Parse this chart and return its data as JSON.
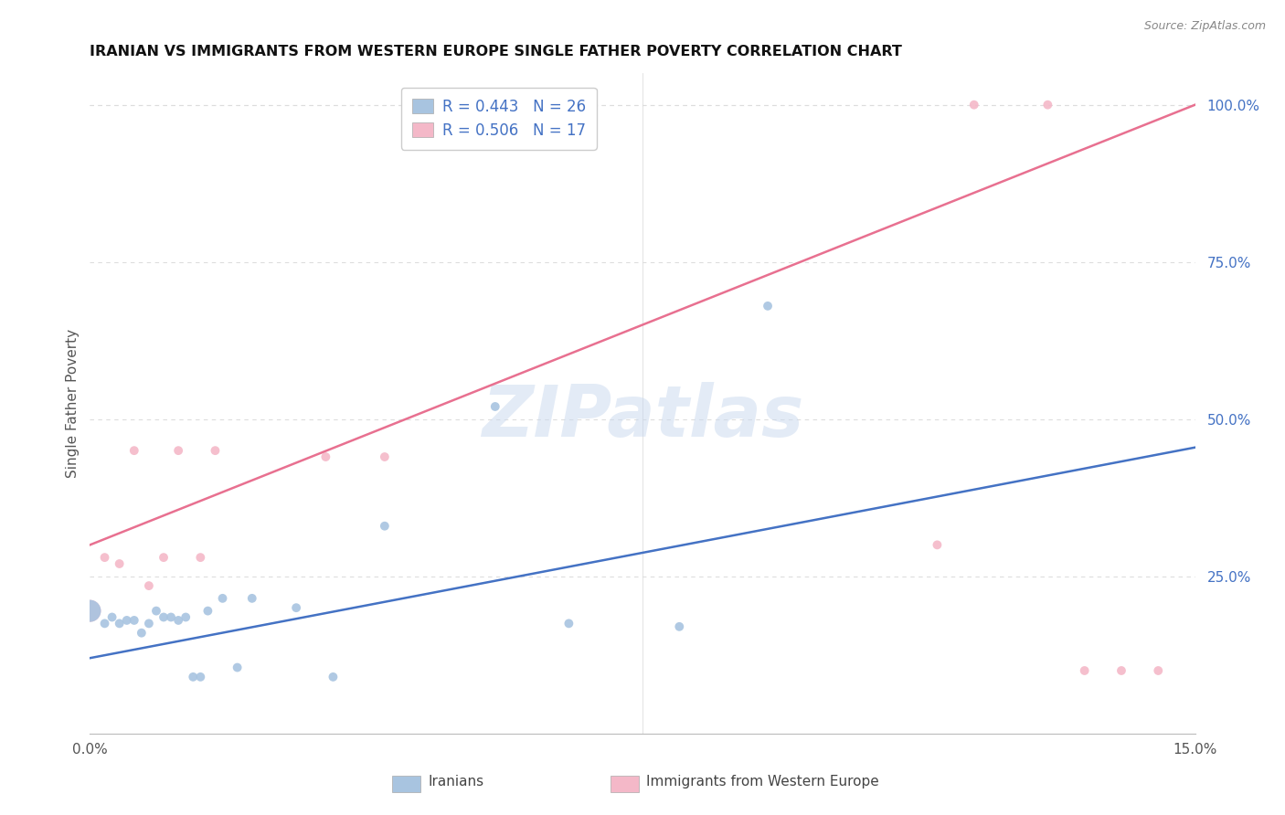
{
  "title": "IRANIAN VS IMMIGRANTS FROM WESTERN EUROPE SINGLE FATHER POVERTY CORRELATION CHART",
  "source": "Source: ZipAtlas.com",
  "ylabel": "Single Father Poverty",
  "xlim": [
    0.0,
    0.15
  ],
  "ylim": [
    0.0,
    1.05
  ],
  "iranians_R": 0.443,
  "iranians_N": 26,
  "western_europe_R": 0.506,
  "western_europe_N": 17,
  "iranians_color": "#a8c4e0",
  "western_europe_color": "#f4b8c8",
  "iranians_line_color": "#4472c4",
  "western_europe_line_color": "#e87090",
  "legend_text_color": "#4472c4",
  "watermark": "ZIPatlas",
  "iranians_x": [
    0.0,
    0.002,
    0.003,
    0.004,
    0.005,
    0.006,
    0.007,
    0.008,
    0.009,
    0.01,
    0.011,
    0.012,
    0.013,
    0.014,
    0.015,
    0.016,
    0.018,
    0.02,
    0.022,
    0.028,
    0.033,
    0.04,
    0.055,
    0.065,
    0.08,
    0.092
  ],
  "iranians_y": [
    0.195,
    0.175,
    0.185,
    0.175,
    0.18,
    0.18,
    0.16,
    0.175,
    0.195,
    0.185,
    0.185,
    0.18,
    0.185,
    0.09,
    0.09,
    0.195,
    0.215,
    0.105,
    0.215,
    0.2,
    0.09,
    0.33,
    0.52,
    0.175,
    0.17,
    0.68
  ],
  "iranians_size": [
    300,
    50,
    50,
    50,
    50,
    50,
    50,
    50,
    50,
    50,
    50,
    50,
    50,
    50,
    50,
    50,
    50,
    50,
    50,
    50,
    50,
    50,
    50,
    50,
    50,
    50
  ],
  "western_europe_x": [
    0.0,
    0.002,
    0.004,
    0.006,
    0.008,
    0.01,
    0.012,
    0.015,
    0.017,
    0.032,
    0.04,
    0.115,
    0.12,
    0.13,
    0.135,
    0.14,
    0.145
  ],
  "western_europe_y": [
    0.195,
    0.28,
    0.27,
    0.45,
    0.235,
    0.28,
    0.45,
    0.28,
    0.45,
    0.44,
    0.44,
    0.3,
    1.0,
    1.0,
    0.1,
    0.1,
    0.1
  ],
  "western_europe_size": [
    300,
    50,
    50,
    50,
    50,
    50,
    50,
    50,
    50,
    50,
    50,
    50,
    50,
    50,
    50,
    50,
    50
  ],
  "background_color": "#ffffff",
  "grid_color": "#dddddd",
  "ytick_positions": [
    0.0,
    0.25,
    0.5,
    0.75,
    1.0
  ],
  "ytick_labels": [
    "",
    "25.0%",
    "50.0%",
    "75.0%",
    "100.0%"
  ],
  "xtick_positions": [
    0.0,
    0.025,
    0.05,
    0.075,
    0.1,
    0.125,
    0.15
  ],
  "xtick_labels": [
    "0.0%",
    "",
    "",
    "",
    "",
    "",
    "15.0%"
  ],
  "iran_line_x0": 0.0,
  "iran_line_x1": 0.15,
  "iran_line_y0": 0.12,
  "iran_line_y1": 0.455,
  "we_line_x0": 0.0,
  "we_line_x1": 0.15,
  "we_line_y0": 0.3,
  "we_line_y1": 1.0
}
